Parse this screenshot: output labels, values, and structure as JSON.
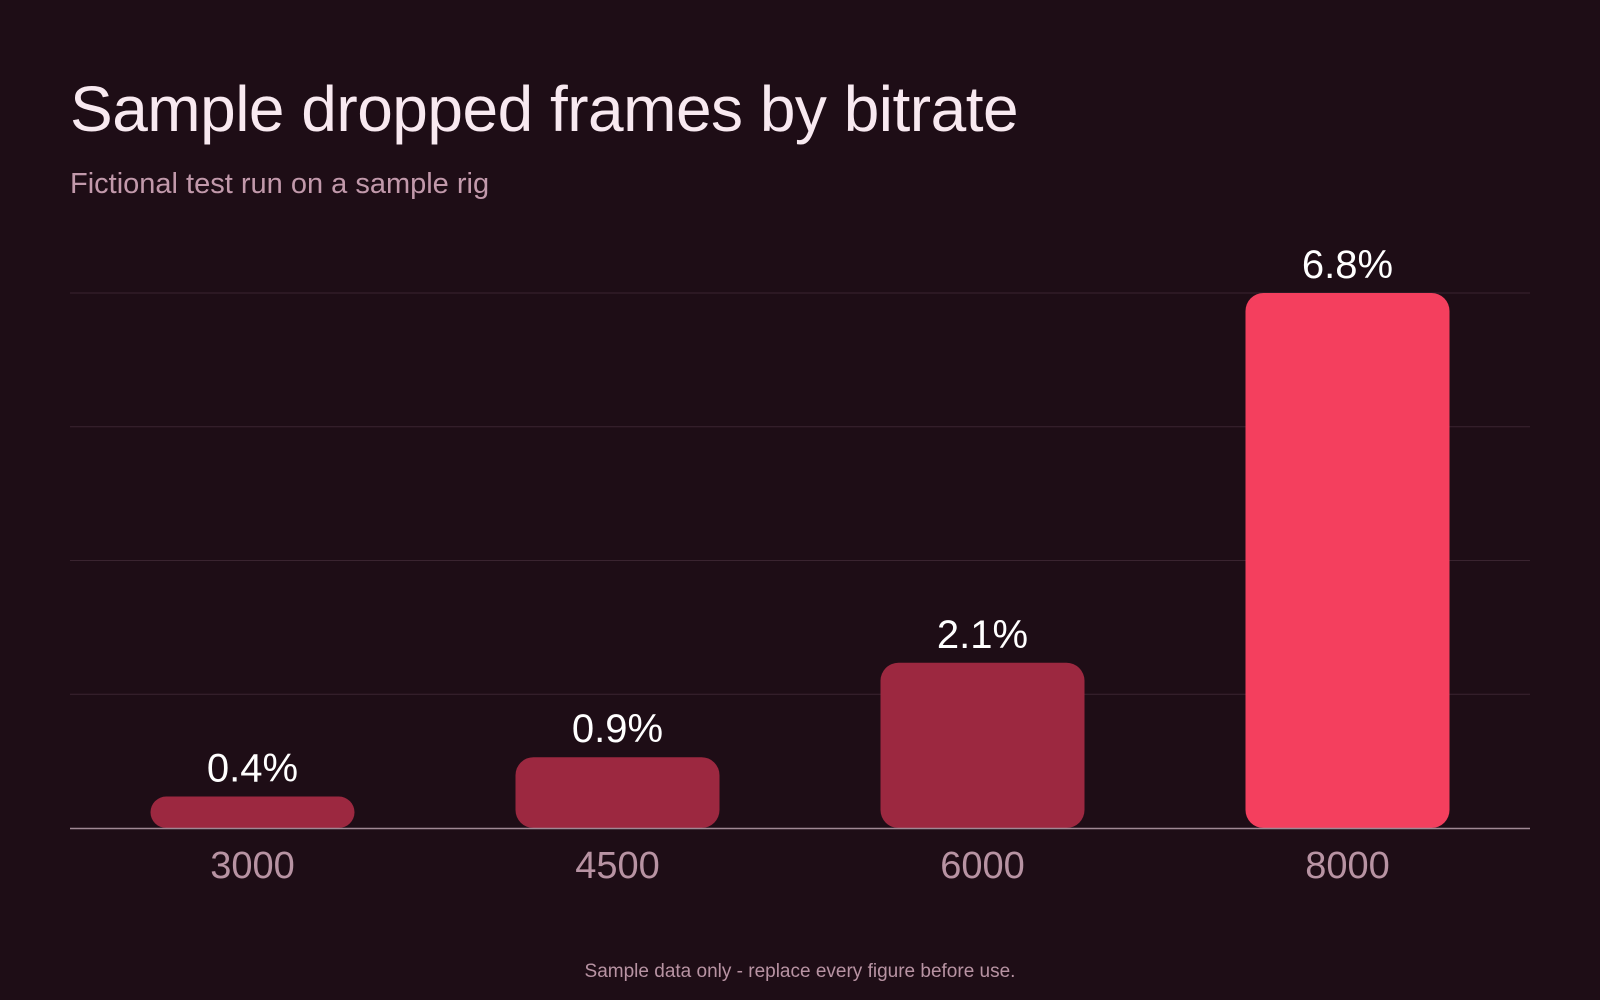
{
  "title": "Sample dropped frames by bitrate",
  "subtitle": "Fictional test run on a sample rig",
  "footnote": "Sample data only - replace every figure before use.",
  "colors": {
    "background": "#1e0d16",
    "bar": "#9c2840",
    "bar_highlight": "#f43f5e",
    "gridline": "#3a2430",
    "axis": "#a08894"
  },
  "chart_data": {
    "type": "bar",
    "categories": [
      "3000",
      "4500",
      "6000",
      "8000"
    ],
    "values": [
      0.4,
      0.9,
      2.1,
      6.8
    ],
    "value_labels": [
      "0.4%",
      "0.9%",
      "2.1%",
      "6.8%"
    ],
    "highlight_index": 3,
    "ylim": [
      0,
      6.8
    ],
    "gridlines": 4,
    "grid": true,
    "xlabel": "",
    "ylabel": ""
  }
}
